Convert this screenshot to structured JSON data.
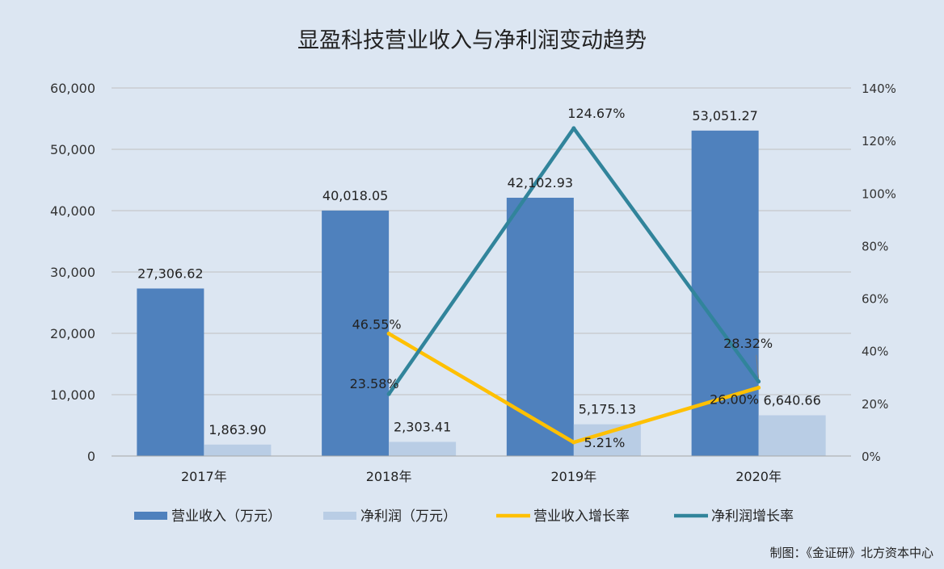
{
  "colors": {
    "background": "#dce6f2",
    "revenue": "#4f81bd",
    "profit": "#b9cde5",
    "revenue_growth": "#ffc000",
    "profit_growth": "#31849b",
    "grid": "#c0c0c0"
  },
  "credit": "制图：《金证研》北方资本中心",
  "chart_data": {
    "type": "bar",
    "title": "显盈科技营业收入与净利润变动趋势",
    "categories": [
      "2017年",
      "2018年",
      "2019年",
      "2020年"
    ],
    "ylim": [
      0,
      60000
    ],
    "y_ticks": [
      "0",
      "10,000",
      "20,000",
      "30,000",
      "40,000",
      "50,000",
      "60,000"
    ],
    "y2lim": [
      0,
      140
    ],
    "y2_ticks": [
      "0%",
      "20%",
      "40%",
      "60%",
      "80%",
      "100%",
      "120%",
      "140%"
    ],
    "grid": true,
    "legend_position": "bottom",
    "series": [
      {
        "name": "营业收入（万元）",
        "kind": "bar",
        "values": [
          27306.62,
          40018.05,
          42102.93,
          53051.27
        ],
        "labels": [
          "27,306.62",
          "40,018.05",
          "42,102.93",
          "53,051.27"
        ]
      },
      {
        "name": "净利润（万元）",
        "kind": "bar",
        "values": [
          1863.9,
          2303.41,
          5175.13,
          6640.66
        ],
        "labels": [
          "1,863.90",
          "2,303.41",
          "5,175.13",
          "6,640.66"
        ]
      },
      {
        "name": "营业收入增长率",
        "kind": "line",
        "axis": "right",
        "x": [
          "2018年",
          "2019年",
          "2020年"
        ],
        "values": [
          46.55,
          5.21,
          26.0
        ],
        "labels": [
          "46.55%",
          "5.21%",
          "26.00%"
        ]
      },
      {
        "name": "净利润增长率",
        "kind": "line",
        "axis": "right",
        "x": [
          "2018年",
          "2019年",
          "2020年"
        ],
        "values": [
          23.58,
          124.67,
          28.32
        ],
        "labels": [
          "23.58%",
          "124.67%",
          "28.32%"
        ]
      }
    ]
  }
}
